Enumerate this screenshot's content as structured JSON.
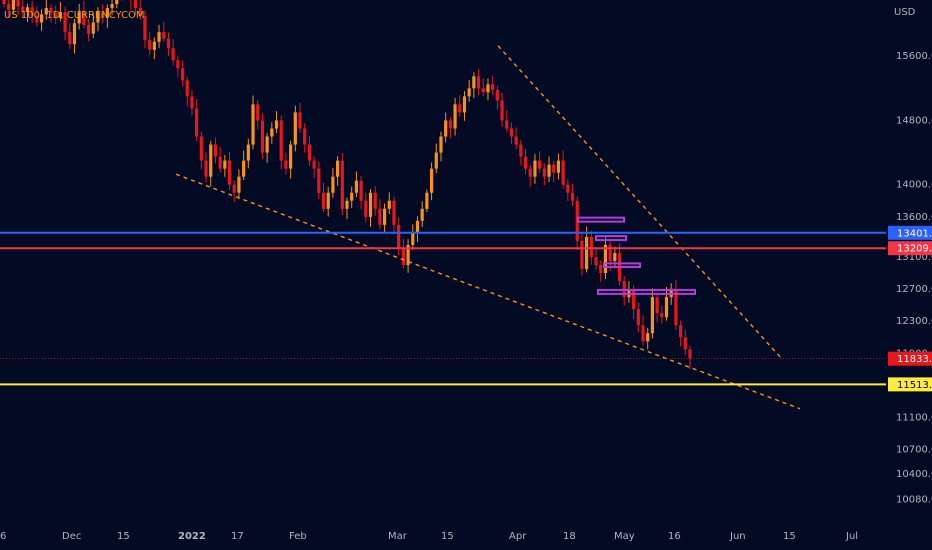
{
  "symbol_label": "US 100, 1D, CURRENCYCOM",
  "currency": "USD",
  "colors": {
    "background": "#020a24",
    "up": "#f7931a",
    "down": "#e8171d",
    "blue_line": "#2962ff",
    "red_line": "#f23645",
    "yellow_line": "#ffeb3b",
    "trendline": "#f7931a",
    "zone": "#b43cdc"
  },
  "chart_data": {
    "type": "candlestick",
    "title": "US 100, 1D, CURRENCYCOM",
    "ylabel": "USD",
    "ylim": [
      9800,
      16300
    ],
    "price_scale_ticks": [
      "15600.0",
      "14800.0",
      "14000.0",
      "13600.0",
      "13100.0",
      "12700.0",
      "12300.0",
      "11900.0",
      "11100.0",
      "10700.0",
      "10400.0",
      "10080.0"
    ],
    "x_tick_labels": [
      "6",
      "Dec",
      "15",
      "2022",
      "17",
      "Feb",
      "Mar",
      "15",
      "Apr",
      "18",
      "May",
      "16",
      "Jun",
      "15",
      "Jul"
    ],
    "horizontal_levels": [
      {
        "value": 13401.2,
        "label": "13401.2",
        "color": "#2962ff"
      },
      {
        "value": 13209.3,
        "label": "13209.3",
        "color": "#f23645"
      },
      {
        "value": 11513.6,
        "label": "11513.6",
        "color": "#ffeb3b"
      }
    ],
    "last_price": {
      "value": 11833.8,
      "label": "11833.8"
    },
    "closes": [
      16250,
      16180,
      16300,
      16220,
      16150,
      16210,
      16100,
      16020,
      16120,
      16200,
      16140,
      16080,
      16150,
      15900,
      15750,
      16010,
      16160,
      15990,
      15880,
      16020,
      16150,
      16080,
      16200,
      16250,
      16400,
      16450,
      16380,
      16300,
      16200,
      16100,
      15800,
      15680,
      15780,
      15900,
      15820,
      15700,
      15550,
      15450,
      15300,
      15100,
      14950,
      14600,
      14300,
      14100,
      14500,
      14350,
      14200,
      14300,
      14000,
      13900,
      14100,
      14300,
      14500,
      15000,
      14800,
      14400,
      14600,
      14700,
      14800,
      14300,
      14200,
      14500,
      14900,
      14700,
      14500,
      14300,
      14200,
      13900,
      13700,
      13900,
      14100,
      14300,
      13700,
      13800,
      13900,
      14050,
      13800,
      13600,
      13900,
      13700,
      13500,
      13700,
      13800,
      13500,
      13200,
      13000,
      13250,
      13400,
      13550,
      13700,
      13900,
      14200,
      14400,
      14600,
      14800,
      14700,
      15000,
      14900,
      15100,
      15200,
      15350,
      15200,
      15150,
      15250,
      15180,
      15050,
      14800,
      14700,
      14600,
      14500,
      14350,
      14200,
      14100,
      14300,
      14200,
      14100,
      14250,
      14150,
      14300,
      14000,
      13900,
      13800,
      13300,
      12950,
      13350,
      13100,
      13000,
      12900,
      13250,
      13050,
      13150,
      12800,
      12600,
      12700,
      12450,
      12250,
      12050,
      12150,
      12600,
      12400,
      12350,
      12600,
      12700,
      12250,
      12100,
      11950,
      11833.8
    ]
  }
}
